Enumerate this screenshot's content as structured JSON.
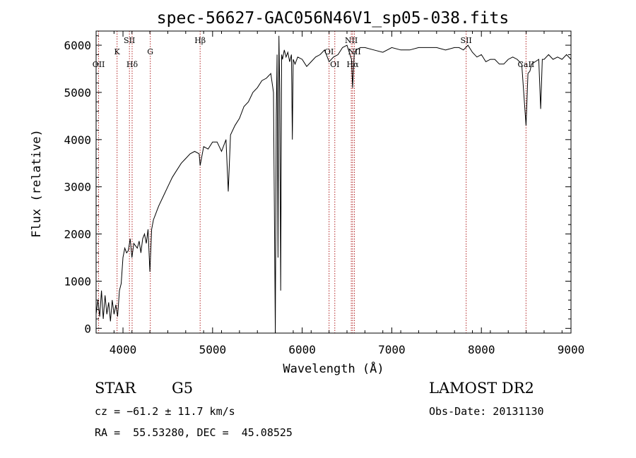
{
  "chart_data": {
    "type": "line",
    "title": "spec-56627-GAC056N46V1_sp05-038.fits",
    "xlabel": "Wavelength (Å)",
    "ylabel": "Flux (relative)",
    "xlim": [
      3700,
      9000
    ],
    "ylim": [
      -100,
      6300
    ],
    "x_ticks": [
      4000,
      5000,
      6000,
      7000,
      8000,
      9000
    ],
    "y_ticks": [
      0,
      1000,
      2000,
      3000,
      4000,
      5000,
      6000
    ],
    "grid": false,
    "spectrum": {
      "x": [
        3700,
        3720,
        3740,
        3760,
        3780,
        3800,
        3820,
        3840,
        3860,
        3880,
        3900,
        3920,
        3940,
        3960,
        3980,
        4000,
        4020,
        4040,
        4060,
        4080,
        4100,
        4120,
        4140,
        4160,
        4180,
        4200,
        4220,
        4240,
        4260,
        4280,
        4300,
        4320,
        4340,
        4360,
        4380,
        4400,
        4450,
        4500,
        4550,
        4600,
        4650,
        4700,
        4750,
        4800,
        4850,
        4861,
        4900,
        4950,
        5000,
        5050,
        5100,
        5150,
        5175,
        5200,
        5250,
        5300,
        5350,
        5400,
        5450,
        5500,
        5550,
        5600,
        5650,
        5680,
        5700,
        5710,
        5720,
        5730,
        5740,
        5750,
        5760,
        5770,
        5780,
        5800,
        5820,
        5840,
        5860,
        5880,
        5890,
        5900,
        5920,
        5950,
        6000,
        6050,
        6100,
        6150,
        6200,
        6250,
        6300,
        6350,
        6400,
        6450,
        6500,
        6550,
        6563,
        6580,
        6600,
        6650,
        6700,
        6800,
        6900,
        7000,
        7100,
        7200,
        7300,
        7400,
        7500,
        7600,
        7700,
        7750,
        7800,
        7850,
        7900,
        7950,
        8000,
        8050,
        8100,
        8150,
        8200,
        8250,
        8300,
        8350,
        8400,
        8450,
        8498,
        8520,
        8542,
        8560,
        8600,
        8640,
        8662,
        8680,
        8700,
        8750,
        8800,
        8850,
        8900,
        8950,
        9000
      ],
      "y": [
        300,
        600,
        250,
        800,
        200,
        700,
        300,
        550,
        150,
        600,
        300,
        500,
        250,
        800,
        950,
        1500,
        1700,
        1600,
        1650,
        1900,
        1500,
        1800,
        1750,
        1700,
        1850,
        1600,
        1900,
        2000,
        1800,
        2100,
        1200,
        2100,
        2300,
        2400,
        2500,
        2600,
        2800,
        3000,
        3200,
        3350,
        3500,
        3600,
        3700,
        3750,
        3700,
        3450,
        3850,
        3800,
        3950,
        3950,
        3750,
        4000,
        2900,
        4100,
        4300,
        4450,
        4700,
        4800,
        5000,
        5100,
        5250,
        5300,
        5400,
        5000,
        -100,
        4500,
        5800,
        1500,
        6200,
        5000,
        800,
        5800,
        5700,
        5900,
        5750,
        5850,
        5650,
        5800,
        4000,
        5700,
        5600,
        5750,
        5700,
        5550,
        5650,
        5750,
        5800,
        5900,
        5650,
        5750,
        5800,
        5950,
        6000,
        5700,
        5100,
        5800,
        5900,
        5950,
        5950,
        5900,
        5850,
        5950,
        5900,
        5900,
        5950,
        5950,
        5950,
        5900,
        5950,
        5950,
        5900,
        6000,
        5850,
        5750,
        5800,
        5650,
        5700,
        5700,
        5600,
        5600,
        5700,
        5750,
        5700,
        5600,
        4300,
        5400,
        5450,
        5600,
        5650,
        5700,
        4650,
        5700,
        5700,
        5800,
        5700,
        5750,
        5700,
        5800,
        5700
      ]
    },
    "spectral_lines": [
      {
        "name": "OII",
        "x": 3728,
        "row": 3
      },
      {
        "name": "K",
        "x": 3934,
        "row": 1
      },
      {
        "name": "SII",
        "x": 4072,
        "row": 0
      },
      {
        "name": "Hδ",
        "x": 4102,
        "row": 2
      },
      {
        "name": "G",
        "x": 4305,
        "row": 1
      },
      {
        "name": "Hβ",
        "x": 4861,
        "row": 0
      },
      {
        "name": "OI",
        "x": 6300,
        "row": 1
      },
      {
        "name": "OI",
        "x": 6364,
        "row": 2
      },
      {
        "name": "NII",
        "x": 6548,
        "row": 0
      },
      {
        "name": "Hα",
        "x": 6563,
        "row": 2
      },
      {
        "name": "NII",
        "x": 6583,
        "row": 1
      },
      {
        "name": "SII",
        "x": 7830,
        "row": 0
      },
      {
        "name": "CaII",
        "x": 8498,
        "row": 2
      }
    ]
  },
  "info": {
    "class_label": "STAR",
    "subclass": "G5",
    "survey": "LAMOST DR2",
    "redshift_line": "cz = −61.2 ± 11.7 km/s",
    "obs_date": "Obs-Date: 20131130",
    "coords_line": "RA =  55.53280, DEC =  45.08525"
  }
}
